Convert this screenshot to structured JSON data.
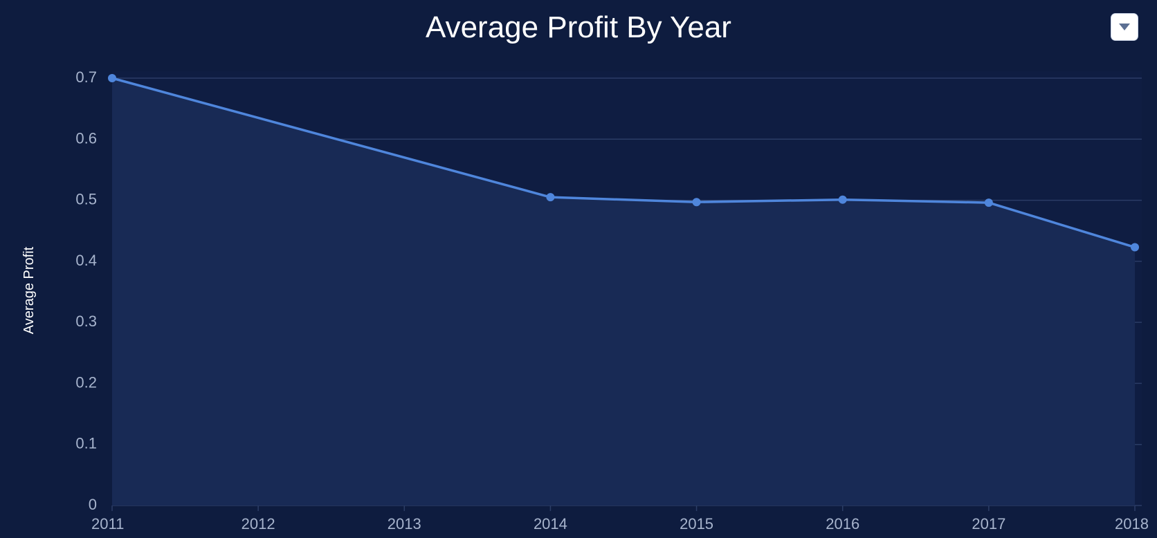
{
  "header": {
    "title": "Average Profit By Year",
    "menu_icon": "chevron-down-icon"
  },
  "colors": {
    "background": "#0e1c3f",
    "plot_background": "#0f1d42",
    "area_fill": "#182a55",
    "line": "#4f86dc",
    "gridline": "#2b3d66",
    "tick_text": "#a7b4cd"
  },
  "chart_data": {
    "type": "area",
    "title": "Average Profit By Year",
    "xlabel": "",
    "ylabel": "Average Profit",
    "categories": [
      "2011",
      "2012",
      "2013",
      "2014",
      "2015",
      "2016",
      "2017",
      "2018"
    ],
    "series": [
      {
        "points": [
          {
            "x": "2011",
            "y": 0.7
          },
          {
            "x": "2014",
            "y": 0.505
          },
          {
            "x": "2015",
            "y": 0.497
          },
          {
            "x": "2016",
            "y": 0.501
          },
          {
            "x": "2017",
            "y": 0.496
          },
          {
            "x": "2018",
            "y": 0.423
          }
        ]
      }
    ],
    "yticks": [
      "0",
      "0.1",
      "0.2",
      "0.3",
      "0.4",
      "0.5",
      "0.6",
      "0.7"
    ],
    "ylim": [
      0,
      0.7
    ],
    "grid": true,
    "legend": "none"
  }
}
